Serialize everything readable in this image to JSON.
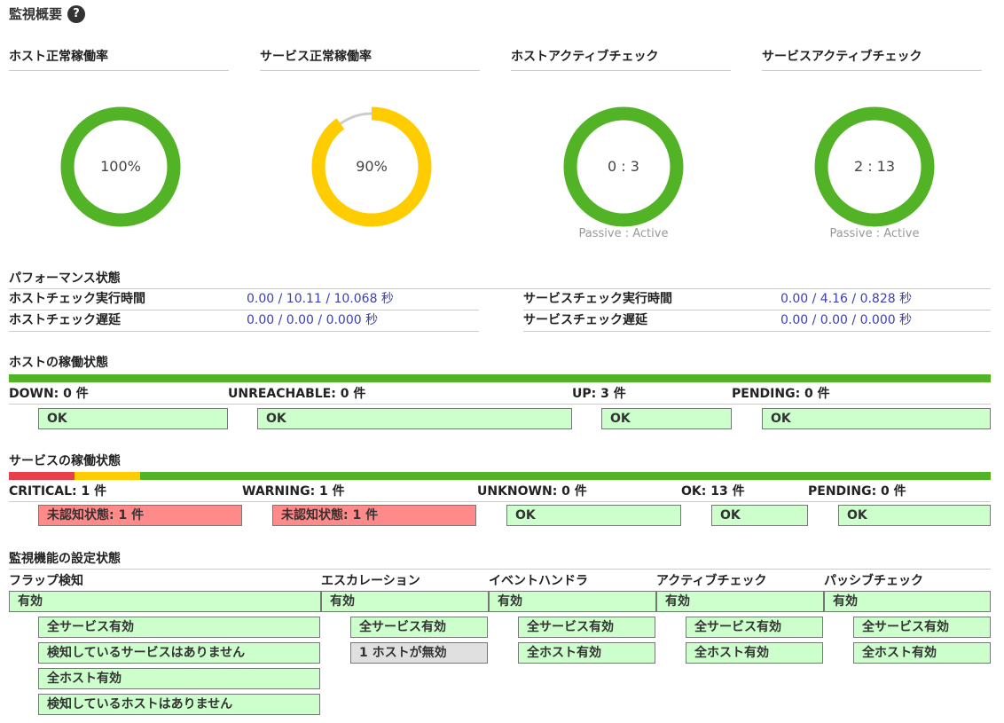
{
  "page": {
    "title": "監視概要",
    "help_icon": "?"
  },
  "gauges": [
    {
      "title": "ホスト正常稼働率",
      "value": "100%",
      "caption": "",
      "percent": 100,
      "color": "#52b326",
      "secondary_color": "#52b326"
    },
    {
      "title": "サービス正常稼働率",
      "value": "90%",
      "caption": "",
      "percent": 90,
      "color": "#ffcc00",
      "secondary_color": "#cccccc"
    },
    {
      "title": "ホストアクティブチェック",
      "value": "0 : 3",
      "caption": "Passive : Active",
      "passive": 0,
      "active": 3,
      "color": "#52b326",
      "secondary_color": "#ff9900"
    },
    {
      "title": "サービスアクティブチェック",
      "value": "2 : 13",
      "caption": "Passive : Active",
      "passive": 2,
      "active": 13,
      "color": "#52b326",
      "secondary_color": "#ff9900"
    }
  ],
  "performance": {
    "title": "パフォーマンス状態",
    "rows": [
      {
        "label": "ホストチェック実行時間",
        "value": "0.00 / 10.11 / 10.068 秒"
      },
      {
        "label": "ホストチェック遅延",
        "value": "0.00 / 0.00 / 0.000 秒"
      },
      {
        "label": "サービスチェック実行時間",
        "value": "0.00 / 4.16 / 0.828 秒"
      },
      {
        "label": "サービスチェック遅延",
        "value": "0.00 / 0.00 / 0.000 秒"
      }
    ]
  },
  "host_status": {
    "title": "ホストの稼働状態",
    "counts": [
      "DOWN: 0 件",
      "UNREACHABLE: 0 件",
      "UP: 3 件",
      "PENDING: 0 件"
    ],
    "boxes": [
      "OK",
      "OK",
      "OK",
      "OK"
    ],
    "bar_color": "#52b326"
  },
  "service_status": {
    "title": "サービスの稼働状態",
    "counts": [
      "CRITICAL: 1 件",
      "WARNING: 1 件",
      "UNKNOWN: 0 件",
      "OK: 13 件",
      "PENDING: 0 件"
    ],
    "boxes": [
      "未認知状態: 1 件",
      "未認知状態: 1 件",
      "OK",
      "OK",
      "OK"
    ],
    "bar_colors": {
      "critical": "#e8404a",
      "warning": "#ffcc00",
      "ok": "#52b326"
    },
    "bar_values": {
      "critical": 1,
      "warning": 1,
      "ok": 13
    }
  },
  "monitoring": {
    "title": "監視機能の設定状態",
    "columns": [
      {
        "head": "フラップ検知",
        "status": "有効",
        "items": [
          "全サービス有効",
          "検知しているサービスはありません",
          "全ホスト有効",
          "検知しているホストはありません"
        ]
      },
      {
        "head": "エスカレーション",
        "status": "有効",
        "items": [
          "全サービス有効",
          "1 ホストが無効"
        ]
      },
      {
        "head": "イベントハンドラ",
        "status": "有効",
        "items": [
          "全サービス有効",
          "全ホスト有効"
        ]
      },
      {
        "head": "アクティブチェック",
        "status": "有効",
        "items": [
          "全サービス有効",
          "全ホスト有効"
        ]
      },
      {
        "head": "パッシブチェック",
        "status": "有効",
        "items": [
          "全サービス有効",
          "全ホスト有効"
        ]
      }
    ]
  }
}
